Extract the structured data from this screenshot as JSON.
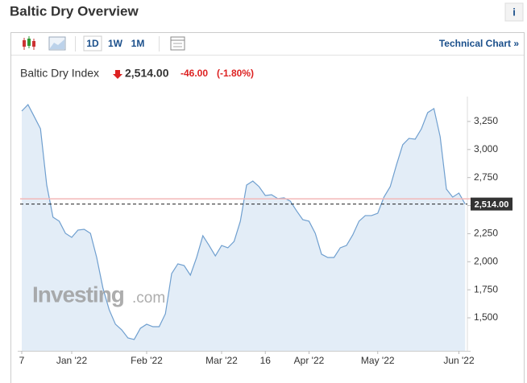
{
  "widget": {
    "title": "Baltic Dry Overview",
    "info_icon": "i",
    "toolbar": {
      "ranges": [
        "1D",
        "1W",
        "1M"
      ],
      "link": "Technical Chart »"
    },
    "quote": {
      "name": "Baltic Dry Index",
      "price": "2,514.00",
      "change": "-46.00",
      "change_pct": "(-1.80%)"
    },
    "watermark": {
      "brand": "Investing",
      "suffix": ".com"
    }
  },
  "chart_data": {
    "type": "area",
    "categories": [
      "7",
      null,
      null,
      null,
      null,
      null,
      null,
      null,
      "Jan '22",
      null,
      null,
      null,
      null,
      null,
      null,
      null,
      null,
      null,
      null,
      null,
      "Feb '22",
      null,
      null,
      null,
      null,
      null,
      null,
      null,
      null,
      null,
      null,
      null,
      "Mar '22",
      null,
      null,
      null,
      null,
      null,
      null,
      "16",
      null,
      null,
      null,
      null,
      null,
      null,
      "Apr '22",
      null,
      null,
      null,
      null,
      null,
      null,
      null,
      null,
      null,
      null,
      "May '22",
      null,
      null,
      null,
      null,
      null,
      null,
      null,
      null,
      null,
      null,
      null,
      null,
      "Jun '22",
      null
    ],
    "values": [
      3343,
      3400,
      3293,
      3185,
      2683,
      2397,
      2361,
      2253,
      2217,
      2282,
      2289,
      2253,
      2038,
      1765,
      1572,
      1443,
      1393,
      1321,
      1307,
      1407,
      1443,
      1421,
      1421,
      1536,
      1894,
      1981,
      1966,
      1880,
      2038,
      2232,
      2145,
      2052,
      2145,
      2124,
      2181,
      2361,
      2683,
      2719,
      2669,
      2590,
      2597,
      2562,
      2569,
      2540,
      2454,
      2375,
      2361,
      2253,
      2067,
      2038,
      2038,
      2124,
      2145,
      2239,
      2361,
      2411,
      2411,
      2432,
      2576,
      2669,
      2863,
      3042,
      3099,
      3092,
      3185,
      3329,
      3365,
      3114,
      2647,
      2576,
      2612,
      2514
    ],
    "color": "#6f9fcf",
    "last_value": {
      "value": 2514,
      "label": "2,514.00"
    },
    "prev_close": 2560,
    "ylim": [
      1206,
      3472
    ],
    "yticks": [
      {
        "value": 1500,
        "label": "1,500"
      },
      {
        "value": 1750,
        "label": "1,750"
      },
      {
        "value": 2000,
        "label": "2,000"
      },
      {
        "value": 2250,
        "label": "2,250"
      },
      {
        "value": 2500,
        "label": "2,500"
      },
      {
        "value": 2750,
        "label": "2,750"
      },
      {
        "value": 3000,
        "label": "3,000"
      },
      {
        "value": 3250,
        "label": "3,250"
      }
    ],
    "grid": false
  }
}
